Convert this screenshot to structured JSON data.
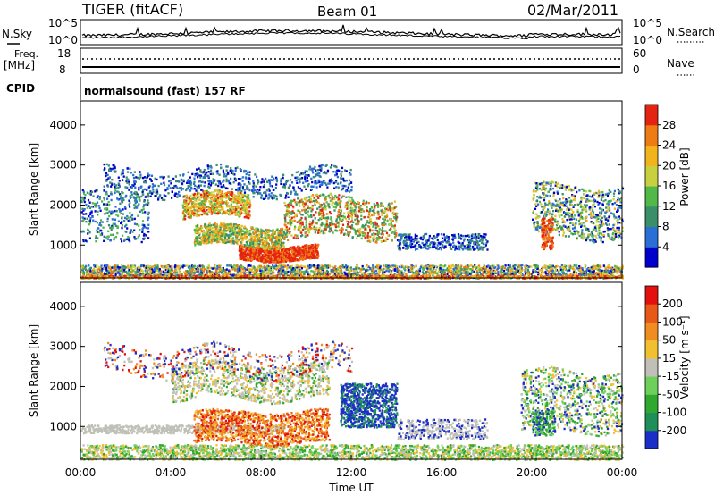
{
  "header": {
    "radar": "TIGER (fitACF)",
    "beam": "Beam 01",
    "date": "02/Mar/2011"
  },
  "top_panels": {
    "nsky_label": "N.Sky",
    "nsky_ticks": [
      "10^5",
      "10^0"
    ],
    "nsearch_label": "N.Search",
    "nsearch_ticks": [
      "10^5",
      "10^0"
    ],
    "freq_label_1": "Freq.",
    "freq_label_2": "[MHz]",
    "freq_ticks": [
      "18",
      "8"
    ],
    "nave_label": "Nave",
    "nave_ticks": [
      "60",
      "0"
    ],
    "cpid_label": "CPID",
    "cpid_text": "normalsound (fast) 157 RF"
  },
  "chart_data": [
    {
      "type": "heatmap",
      "name": "power",
      "ylabel": "Slant Range [km]",
      "yticks": [
        1000,
        2000,
        3000,
        4000
      ],
      "ylim": [
        180,
        4600
      ],
      "xlim": [
        "00:00",
        "24:00"
      ],
      "colorbar": {
        "title": "Power [dB]",
        "ticks": [
          "28",
          "24",
          "20",
          "16",
          "12",
          "8",
          "4"
        ],
        "colors": [
          "#0000cc",
          "#2a6fd6",
          "#3a8f6a",
          "#52b848",
          "#c8d040",
          "#f2b41c",
          "#ee7b14",
          "#e42410"
        ]
      }
    },
    {
      "type": "heatmap",
      "name": "velocity",
      "ylabel": "Slant Range [km]",
      "yticks": [
        1000,
        2000,
        3000,
        4000
      ],
      "ylim": [
        180,
        4600
      ],
      "xlim": [
        "00:00",
        "24:00"
      ],
      "xlabel": "Time UT",
      "xticks": [
        "00:00",
        "04:00",
        "08:00",
        "12:00",
        "16:00",
        "20:00",
        "00:00"
      ],
      "colorbar": {
        "title": "Velocity [m s⁻¹]",
        "ticks": [
          "200",
          "100",
          "50",
          "15",
          "-15",
          "-50",
          "-100",
          "-200"
        ],
        "colors": [
          "#1c2ec8",
          "#1f8f5a",
          "#30a830",
          "#6cd05a",
          "#c0c0b8",
          "#f0c030",
          "#f08c20",
          "#e85818",
          "#e41010"
        ]
      }
    }
  ]
}
